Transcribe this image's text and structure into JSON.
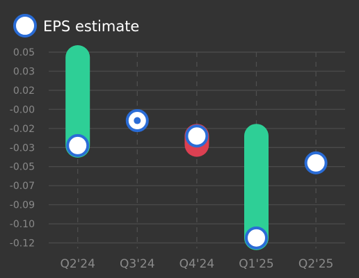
{
  "legend": {
    "label": "EPS estimate"
  },
  "colors": {
    "background": "#333333",
    "grid": "#4a4a4a",
    "gridline_vertical": "#4f4f4f",
    "beat": "#2ecf96",
    "miss": "#dc4052",
    "marker_stroke": "#2a6cd6",
    "marker_fill": "#ffffff",
    "tick_text": "#8a8a8a"
  },
  "chart_data": {
    "type": "bar",
    "categories": [
      "Q2'24",
      "Q3'24",
      "Q4'24",
      "Q1'25",
      "Q2'25"
    ],
    "y_tick_labels": [
      "0.05",
      "0.03",
      "0.02",
      "-0.00",
      "-0.02",
      "-0.03",
      "-0.05",
      "-0.07",
      "-0.09",
      "-0.10",
      "-0.12"
    ],
    "ylim": [
      -0.122,
      0.0504
    ],
    "series": [
      {
        "name": "EPS estimate",
        "values": [
          -0.034,
          -0.0115,
          -0.0254,
          -0.1175,
          -0.0497
        ]
      },
      {
        "values": [
          0.0457,
          null,
          -0.0332,
          -0.0254,
          null
        ]
      }
    ],
    "grid": true,
    "legend_position": "top-left"
  }
}
